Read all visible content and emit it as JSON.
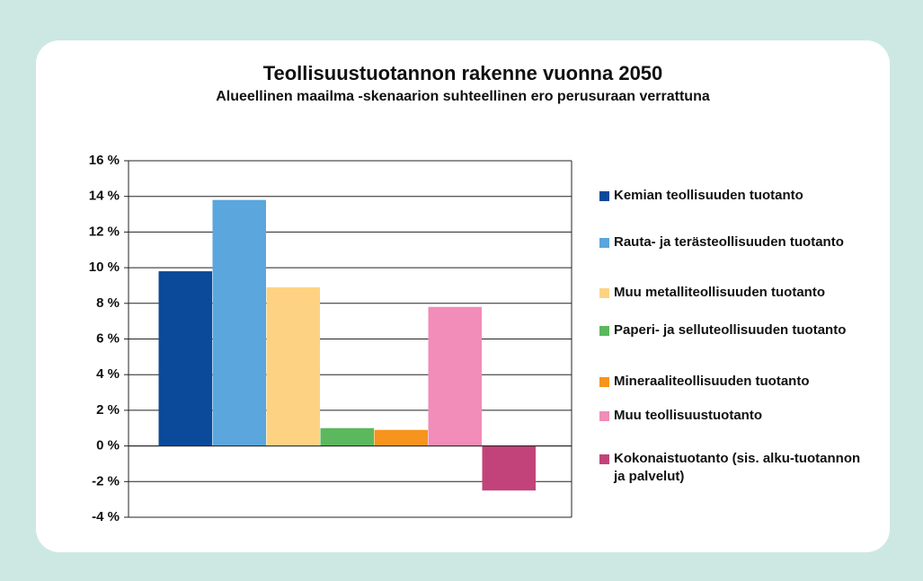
{
  "chart_data": {
    "type": "bar",
    "title": "Teollisuustuotannon rakenne vuonna 2050",
    "subtitle": "Alueellinen maailma -skenaarion suhteellinen ero perusuraan verrattuna",
    "categories": [
      null
    ],
    "series": [
      {
        "name": "Kemian teollisuuden tuotanto",
        "color": "#0b4a9a",
        "values": [
          9.8
        ]
      },
      {
        "name": "Rauta- ja terästeollisuuden tuotanto",
        "color": "#5aa6dd",
        "values": [
          13.8
        ]
      },
      {
        "name": "Muu metalliteollisuuden tuotanto",
        "color": "#fdd383",
        "values": [
          8.9
        ]
      },
      {
        "name": "Paperi- ja selluteollisuuden tuotanto",
        "color": "#5cb85c",
        "values": [
          1.0
        ]
      },
      {
        "name": "Mineraaliteollisuuden tuotanto",
        "color": "#f7941d",
        "values": [
          0.9
        ]
      },
      {
        "name": "Muu teollisuustuotanto",
        "color": "#f28cb9",
        "values": [
          7.8
        ]
      },
      {
        "name": "Kokonaistuotanto (sis. alku-tuotannon ja palvelut)",
        "color": "#c2437a",
        "values": [
          -2.5
        ]
      }
    ],
    "ylim": [
      -4,
      16
    ],
    "yticks": [
      {
        "value": -4,
        "label": "-4 %"
      },
      {
        "value": -2,
        "label": "-2 %"
      },
      {
        "value": 0,
        "label": "0 %"
      },
      {
        "value": 2,
        "label": "2 %"
      },
      {
        "value": 4,
        "label": "4 %"
      },
      {
        "value": 6,
        "label": "6 %"
      },
      {
        "value": 8,
        "label": "8 %"
      },
      {
        "value": 10,
        "label": "10 %"
      },
      {
        "value": 12,
        "label": "12 %"
      },
      {
        "value": 14,
        "label": "14 %"
      },
      {
        "value": 16,
        "label": "16 %"
      }
    ],
    "grid": true,
    "legend": "right"
  }
}
